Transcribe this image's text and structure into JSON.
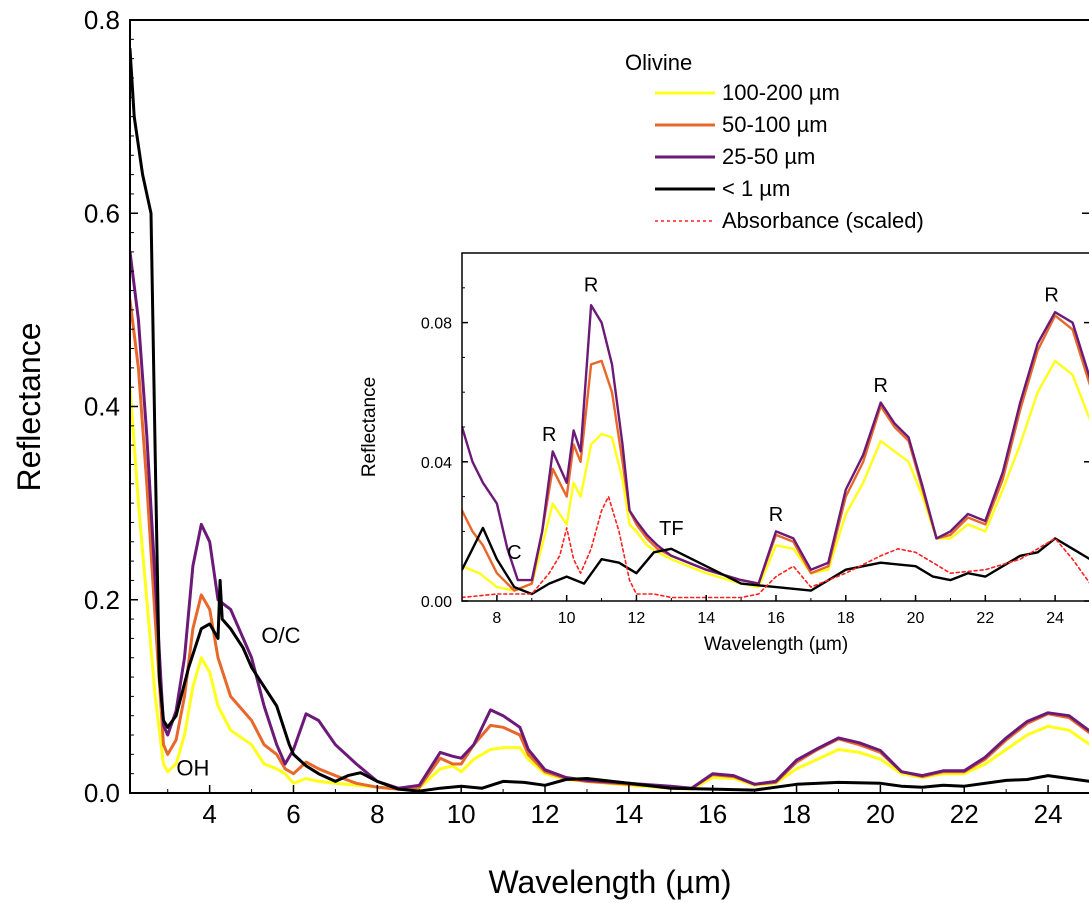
{
  "colors": {
    "yellow": "#ffff1a",
    "orange": "#e8672a",
    "purple": "#6c1a78",
    "black": "#000000",
    "red": "#ff2020"
  },
  "chart_data": [
    {
      "id": "main",
      "type": "line",
      "xlabel": "Wavelength (µm)",
      "ylabel": "Reflectance",
      "xlim": [
        2.1,
        25
      ],
      "ylim": [
        0,
        0.8
      ],
      "xticks": [
        4,
        6,
        8,
        10,
        12,
        14,
        16,
        18,
        20,
        22,
        24
      ],
      "yticks": [
        0.0,
        0.2,
        0.4,
        0.6,
        0.8
      ],
      "ytick_labels": [
        "0.0",
        "0.2",
        "0.4",
        "0.6",
        "0.8"
      ],
      "legend": {
        "title": "Olivine",
        "position": "top-right",
        "entries": [
          {
            "label": "100-200 µm",
            "color": "yellow",
            "style": "solid"
          },
          {
            "label": "50-100 µm",
            "color": "orange",
            "style": "solid"
          },
          {
            "label": "25-50 µm",
            "color": "purple",
            "style": "solid"
          },
          {
            "label": "< 1 µm",
            "color": "black",
            "style": "solid"
          },
          {
            "label": "Absorbance (scaled)",
            "color": "red",
            "style": "dotted"
          }
        ]
      },
      "annotations": [
        {
          "text": "O/C",
          "x": 5.7,
          "y": 0.155
        },
        {
          "text": "OH",
          "x": 3.6,
          "y": 0.018
        }
      ],
      "series": [
        {
          "name": "100-200 µm",
          "color": "yellow",
          "x": [
            2.1,
            2.3,
            2.5,
            2.7,
            2.9,
            3.0,
            3.2,
            3.4,
            3.6,
            3.8,
            4.0,
            4.2,
            4.5,
            5.0,
            5.3,
            5.6,
            5.8,
            6.0,
            6.3,
            6.6,
            7.0,
            7.5,
            8.0,
            8.5,
            9.0,
            9.5,
            9.8,
            10.0,
            10.3,
            10.7,
            11.0,
            11.4,
            11.6,
            12.0,
            12.5,
            13.0,
            14.0,
            15.0,
            15.5,
            16.0,
            16.5,
            17.0,
            17.5,
            18.0,
            18.5,
            19.0,
            19.5,
            20.0,
            20.5,
            21.0,
            21.5,
            22.0,
            22.5,
            23.0,
            23.5,
            24.0,
            24.5,
            25.0
          ],
          "y": [
            0.42,
            0.3,
            0.2,
            0.1,
            0.03,
            0.022,
            0.03,
            0.06,
            0.11,
            0.14,
            0.125,
            0.09,
            0.065,
            0.05,
            0.03,
            0.025,
            0.02,
            0.01,
            0.015,
            0.012,
            0.01,
            0.008,
            0.006,
            0.004,
            0.005,
            0.025,
            0.028,
            0.022,
            0.035,
            0.045,
            0.047,
            0.047,
            0.035,
            0.02,
            0.014,
            0.012,
            0.008,
            0.005,
            0.004,
            0.016,
            0.015,
            0.008,
            0.01,
            0.025,
            0.035,
            0.045,
            0.042,
            0.035,
            0.02,
            0.016,
            0.02,
            0.02,
            0.03,
            0.045,
            0.06,
            0.069,
            0.065,
            0.05
          ]
        },
        {
          "name": "50-100 µm",
          "color": "orange",
          "x": [
            2.1,
            2.3,
            2.5,
            2.7,
            2.9,
            3.0,
            3.2,
            3.4,
            3.6,
            3.8,
            4.0,
            4.2,
            4.5,
            5.0,
            5.3,
            5.6,
            5.8,
            6.0,
            6.3,
            6.6,
            7.0,
            7.5,
            8.0,
            8.5,
            9.0,
            9.5,
            9.8,
            10.0,
            10.3,
            10.7,
            11.0,
            11.4,
            11.6,
            12.0,
            12.5,
            13.0,
            14.0,
            15.0,
            15.5,
            16.0,
            16.5,
            17.0,
            17.5,
            18.0,
            18.5,
            19.0,
            19.5,
            20.0,
            20.5,
            21.0,
            21.5,
            22.0,
            22.5,
            23.0,
            23.5,
            24.0,
            24.5,
            25.0
          ],
          "y": [
            0.51,
            0.44,
            0.32,
            0.18,
            0.05,
            0.04,
            0.055,
            0.1,
            0.17,
            0.205,
            0.19,
            0.14,
            0.1,
            0.075,
            0.05,
            0.04,
            0.025,
            0.02,
            0.032,
            0.025,
            0.018,
            0.01,
            0.006,
            0.004,
            0.006,
            0.036,
            0.03,
            0.03,
            0.05,
            0.07,
            0.068,
            0.06,
            0.04,
            0.022,
            0.015,
            0.012,
            0.009,
            0.006,
            0.005,
            0.019,
            0.017,
            0.009,
            0.011,
            0.032,
            0.045,
            0.056,
            0.05,
            0.042,
            0.022,
            0.017,
            0.022,
            0.022,
            0.035,
            0.055,
            0.072,
            0.082,
            0.078,
            0.062
          ]
        },
        {
          "name": "25-50 µm",
          "color": "purple",
          "x": [
            2.1,
            2.3,
            2.5,
            2.7,
            2.9,
            3.0,
            3.2,
            3.4,
            3.6,
            3.8,
            4.0,
            4.2,
            4.5,
            5.0,
            5.3,
            5.6,
            5.8,
            6.0,
            6.3,
            6.6,
            7.0,
            7.5,
            8.0,
            8.5,
            9.0,
            9.5,
            9.8,
            10.0,
            10.3,
            10.7,
            11.0,
            11.4,
            11.6,
            12.0,
            12.5,
            13.0,
            14.0,
            15.0,
            15.5,
            16.0,
            16.5,
            17.0,
            17.5,
            18.0,
            18.5,
            19.0,
            19.5,
            20.0,
            20.5,
            21.0,
            21.5,
            22.0,
            22.5,
            23.0,
            23.5,
            24.0,
            24.5,
            25.0
          ],
          "y": [
            0.56,
            0.49,
            0.37,
            0.22,
            0.07,
            0.06,
            0.085,
            0.14,
            0.235,
            0.278,
            0.26,
            0.2,
            0.19,
            0.14,
            0.09,
            0.05,
            0.03,
            0.045,
            0.082,
            0.075,
            0.05,
            0.03,
            0.012,
            0.005,
            0.008,
            0.042,
            0.038,
            0.036,
            0.05,
            0.086,
            0.08,
            0.068,
            0.045,
            0.024,
            0.016,
            0.013,
            0.01,
            0.007,
            0.005,
            0.02,
            0.018,
            0.009,
            0.012,
            0.034,
            0.046,
            0.057,
            0.052,
            0.044,
            0.022,
            0.018,
            0.023,
            0.023,
            0.037,
            0.057,
            0.074,
            0.083,
            0.08,
            0.064
          ]
        },
        {
          "name": "< 1 µm",
          "color": "black",
          "x": [
            2.1,
            2.2,
            2.4,
            2.6,
            2.7,
            2.8,
            2.9,
            3.0,
            3.2,
            3.5,
            3.8,
            4.0,
            4.2,
            4.25,
            4.3,
            4.5,
            4.8,
            5.0,
            5.3,
            5.6,
            5.75,
            5.9,
            6.0,
            6.3,
            6.6,
            7.0,
            7.3,
            7.6,
            8.0,
            8.5,
            9.0,
            9.5,
            10.0,
            10.5,
            11.0,
            11.5,
            12.0,
            12.5,
            13.0,
            14.0,
            15.0,
            16.0,
            17.0,
            18.0,
            19.0,
            20.0,
            20.5,
            21.0,
            21.5,
            22.0,
            23.0,
            23.5,
            24.0,
            24.5,
            25.0
          ],
          "y": [
            0.77,
            0.7,
            0.64,
            0.6,
            0.35,
            0.12,
            0.075,
            0.068,
            0.08,
            0.13,
            0.17,
            0.175,
            0.16,
            0.22,
            0.18,
            0.17,
            0.15,
            0.13,
            0.11,
            0.09,
            0.07,
            0.05,
            0.04,
            0.028,
            0.02,
            0.012,
            0.018,
            0.021,
            0.012,
            0.004,
            0.002,
            0.005,
            0.007,
            0.005,
            0.012,
            0.011,
            0.008,
            0.014,
            0.015,
            0.01,
            0.005,
            0.004,
            0.003,
            0.009,
            0.011,
            0.01,
            0.007,
            0.006,
            0.008,
            0.007,
            0.013,
            0.014,
            0.018,
            0.015,
            0.012
          ]
        }
      ]
    },
    {
      "id": "inset",
      "type": "line",
      "xlabel": "Wavelength (µm)",
      "ylabel": "Reflectance",
      "xlim": [
        7,
        25
      ],
      "ylim": [
        0,
        0.1
      ],
      "xticks": [
        8,
        10,
        12,
        14,
        16,
        18,
        20,
        22,
        24
      ],
      "yticks": [
        0.0,
        0.04,
        0.08
      ],
      "ytick_labels": [
        "0.00",
        "0.04",
        "0.08"
      ],
      "annotations": [
        {
          "text": "C",
          "x": 8.5,
          "y": 0.012
        },
        {
          "text": "R",
          "x": 9.5,
          "y": 0.046
        },
        {
          "text": "R",
          "x": 10.7,
          "y": 0.089
        },
        {
          "text": "TF",
          "x": 13.0,
          "y": 0.019
        },
        {
          "text": "R",
          "x": 16.0,
          "y": 0.023
        },
        {
          "text": "R",
          "x": 19.0,
          "y": 0.06
        },
        {
          "text": "R",
          "x": 23.9,
          "y": 0.086
        }
      ],
      "series": [
        {
          "name": "100-200 µm",
          "color": "yellow",
          "x": [
            7.0,
            7.5,
            8.0,
            8.5,
            9.0,
            9.3,
            9.6,
            10.0,
            10.2,
            10.4,
            10.7,
            11.0,
            11.3,
            11.6,
            11.8,
            12.0,
            12.3,
            12.6,
            13.0,
            14.0,
            15.0,
            15.5,
            16.0,
            16.5,
            17.0,
            17.5,
            18.0,
            18.5,
            19.0,
            19.4,
            19.8,
            20.2,
            20.6,
            21.0,
            21.5,
            22.0,
            22.5,
            23.0,
            23.5,
            24.0,
            24.5,
            25.0
          ],
          "y": [
            0.01,
            0.008,
            0.004,
            0.003,
            0.005,
            0.016,
            0.028,
            0.022,
            0.034,
            0.03,
            0.045,
            0.048,
            0.047,
            0.035,
            0.022,
            0.02,
            0.016,
            0.014,
            0.012,
            0.008,
            0.005,
            0.004,
            0.016,
            0.015,
            0.008,
            0.009,
            0.025,
            0.034,
            0.046,
            0.043,
            0.04,
            0.03,
            0.018,
            0.018,
            0.022,
            0.02,
            0.032,
            0.045,
            0.06,
            0.069,
            0.065,
            0.052
          ]
        },
        {
          "name": "50-100 µm",
          "color": "orange",
          "x": [
            7.0,
            7.3,
            7.6,
            8.0,
            8.5,
            9.0,
            9.3,
            9.6,
            10.0,
            10.2,
            10.4,
            10.7,
            11.0,
            11.3,
            11.6,
            11.8,
            12.0,
            12.3,
            12.6,
            13.0,
            14.0,
            15.0,
            15.5,
            16.0,
            16.5,
            17.0,
            17.5,
            18.0,
            18.5,
            19.0,
            19.4,
            19.8,
            20.2,
            20.6,
            21.0,
            21.5,
            22.0,
            22.5,
            23.0,
            23.5,
            24.0,
            24.5,
            25.0
          ],
          "y": [
            0.026,
            0.02,
            0.016,
            0.008,
            0.003,
            0.005,
            0.02,
            0.038,
            0.03,
            0.045,
            0.04,
            0.068,
            0.069,
            0.06,
            0.04,
            0.026,
            0.022,
            0.018,
            0.015,
            0.013,
            0.009,
            0.006,
            0.005,
            0.019,
            0.017,
            0.008,
            0.01,
            0.03,
            0.04,
            0.056,
            0.05,
            0.046,
            0.032,
            0.018,
            0.019,
            0.024,
            0.022,
            0.035,
            0.055,
            0.072,
            0.082,
            0.078,
            0.062
          ]
        },
        {
          "name": "25-50 µm",
          "color": "purple",
          "x": [
            7.0,
            7.3,
            7.6,
            8.0,
            8.3,
            8.6,
            9.0,
            9.3,
            9.6,
            10.0,
            10.2,
            10.4,
            10.7,
            11.0,
            11.3,
            11.6,
            11.8,
            12.0,
            12.3,
            12.6,
            13.0,
            14.0,
            15.0,
            15.5,
            16.0,
            16.5,
            17.0,
            17.5,
            18.0,
            18.5,
            19.0,
            19.4,
            19.8,
            20.2,
            20.6,
            21.0,
            21.5,
            22.0,
            22.5,
            23.0,
            23.5,
            24.0,
            24.5,
            25.0
          ],
          "y": [
            0.05,
            0.04,
            0.034,
            0.028,
            0.015,
            0.006,
            0.006,
            0.02,
            0.043,
            0.034,
            0.049,
            0.043,
            0.085,
            0.08,
            0.068,
            0.045,
            0.026,
            0.023,
            0.019,
            0.016,
            0.013,
            0.009,
            0.006,
            0.005,
            0.02,
            0.018,
            0.009,
            0.011,
            0.032,
            0.042,
            0.057,
            0.051,
            0.047,
            0.033,
            0.018,
            0.02,
            0.025,
            0.023,
            0.037,
            0.057,
            0.074,
            0.083,
            0.08,
            0.064
          ]
        },
        {
          "name": "< 1 µm",
          "color": "black",
          "x": [
            7.0,
            7.3,
            7.6,
            8.0,
            8.5,
            9.0,
            9.5,
            10.0,
            10.5,
            11.0,
            11.5,
            12.0,
            12.5,
            13.0,
            14.0,
            15.0,
            16.0,
            17.0,
            18.0,
            19.0,
            20.0,
            20.5,
            21.0,
            21.5,
            22.0,
            23.0,
            23.5,
            24.0,
            24.5,
            25.0
          ],
          "y": [
            0.009,
            0.015,
            0.021,
            0.012,
            0.004,
            0.002,
            0.005,
            0.007,
            0.005,
            0.012,
            0.011,
            0.008,
            0.014,
            0.015,
            0.01,
            0.005,
            0.004,
            0.003,
            0.009,
            0.011,
            0.01,
            0.007,
            0.006,
            0.008,
            0.007,
            0.013,
            0.014,
            0.018,
            0.015,
            0.012
          ]
        },
        {
          "name": "Absorbance (scaled)",
          "color": "red",
          "style": "dotted",
          "x": [
            7.0,
            8.0,
            9.0,
            9.5,
            9.8,
            10.0,
            10.2,
            10.4,
            10.7,
            11.0,
            11.2,
            11.5,
            11.8,
            12.0,
            12.5,
            13.0,
            14.0,
            15.0,
            15.5,
            16.0,
            16.5,
            17.0,
            18.0,
            19.0,
            19.5,
            20.0,
            20.5,
            21.0,
            22.0,
            23.0,
            24.0,
            24.5,
            25.0
          ],
          "y": [
            0.001,
            0.002,
            0.002,
            0.008,
            0.013,
            0.021,
            0.012,
            0.008,
            0.015,
            0.026,
            0.03,
            0.02,
            0.006,
            0.002,
            0.002,
            0.001,
            0.001,
            0.001,
            0.002,
            0.007,
            0.01,
            0.004,
            0.008,
            0.013,
            0.015,
            0.014,
            0.011,
            0.008,
            0.009,
            0.012,
            0.018,
            0.012,
            0.005
          ]
        }
      ]
    }
  ]
}
